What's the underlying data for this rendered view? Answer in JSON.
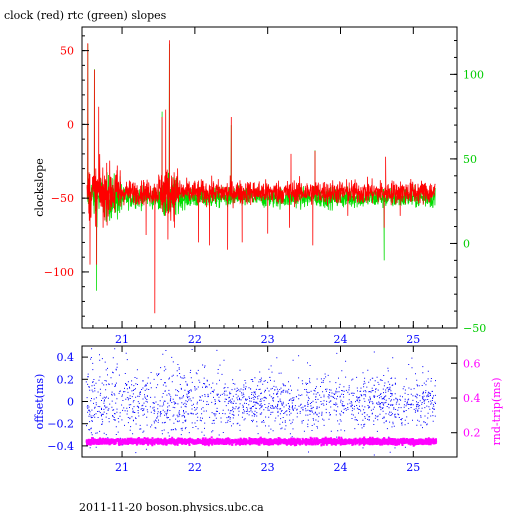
{
  "title": "clock (red) rtc (green) slopes",
  "footer": "2011-11-20 boson.physics.ubc.ca",
  "colors": {
    "clock": "#ff0000",
    "rtc": "#00dd00",
    "offset": "#0000ff",
    "roundtrip": "#ff00ff",
    "frame": "#000000",
    "background": "#ffffff"
  },
  "chart_data": [
    {
      "type": "line",
      "ylabel": "clockslope",
      "y2label": "",
      "xlabel": "",
      "xlim": [
        20.45,
        25.6
      ],
      "ylim": [
        -138,
        66
      ],
      "y2lim": [
        -50,
        128
      ],
      "xticks": [
        21,
        22,
        23,
        24,
        25
      ],
      "yticks": [
        50,
        0,
        -50,
        -100
      ],
      "y2ticks": [
        100,
        50,
        0,
        -50
      ],
      "grid": false,
      "series": [
        {
          "name": "clock",
          "color": "#ff0000",
          "axis": "left",
          "baseline": -46,
          "noise": 4,
          "spikes": [
            {
              "x": 20.53,
              "y": 55
            },
            {
              "x": 20.56,
              "y": -95
            },
            {
              "x": 20.62,
              "y": 37
            },
            {
              "x": 20.65,
              "y": -95
            },
            {
              "x": 20.68,
              "y": 12
            },
            {
              "x": 20.74,
              "y": -70
            },
            {
              "x": 20.9,
              "y": -60
            },
            {
              "x": 21.33,
              "y": -75
            },
            {
              "x": 21.45,
              "y": -128
            },
            {
              "x": 21.55,
              "y": 5
            },
            {
              "x": 21.6,
              "y": 10
            },
            {
              "x": 21.63,
              "y": -78
            },
            {
              "x": 21.65,
              "y": 57
            },
            {
              "x": 21.72,
              "y": -70
            },
            {
              "x": 22.05,
              "y": -80
            },
            {
              "x": 22.2,
              "y": -82
            },
            {
              "x": 22.45,
              "y": -85
            },
            {
              "x": 22.5,
              "y": 5
            },
            {
              "x": 22.65,
              "y": -80
            },
            {
              "x": 23.0,
              "y": -74
            },
            {
              "x": 23.3,
              "y": -70
            },
            {
              "x": 23.32,
              "y": -20
            },
            {
              "x": 23.62,
              "y": -82
            },
            {
              "x": 23.65,
              "y": -18
            },
            {
              "x": 24.1,
              "y": -62
            },
            {
              "x": 24.6,
              "y": -70
            },
            {
              "x": 24.62,
              "y": -22
            },
            {
              "x": 24.82,
              "y": -62
            }
          ]
        },
        {
          "name": "rtc",
          "color": "#00dd00",
          "axis": "right",
          "baseline": 27,
          "noise": 3,
          "spikes": [
            {
              "x": 20.53,
              "y": 118
            },
            {
              "x": 20.62,
              "y": 103
            },
            {
              "x": 20.65,
              "y": -28
            },
            {
              "x": 21.55,
              "y": 78
            },
            {
              "x": 21.65,
              "y": 118
            },
            {
              "x": 22.5,
              "y": 70
            },
            {
              "x": 23.65,
              "y": 55
            },
            {
              "x": 24.6,
              "y": -10
            }
          ]
        }
      ]
    },
    {
      "type": "scatter",
      "ylabel": "offset(ms)",
      "y2label": "rnd-trip(ms)",
      "xlabel": "",
      "xlim": [
        20.45,
        25.6
      ],
      "ylim": [
        -0.5,
        0.5
      ],
      "y2lim": [
        0.06,
        0.7
      ],
      "xticks": [
        21,
        22,
        23,
        24,
        25
      ],
      "yticks": [
        0.4,
        0.2,
        0.0,
        -0.2,
        -0.4
      ],
      "ytick_labels": [
        "0.4",
        "0.2",
        "0",
        "−0.2",
        "−0.4"
      ],
      "y2ticks": [
        0.6,
        0.4,
        0.2
      ],
      "grid": false,
      "series": [
        {
          "name": "offset",
          "color": "#0000ff",
          "axis": "left",
          "center": 0.0,
          "spread": 0.12,
          "x_range": [
            20.5,
            25.3
          ]
        },
        {
          "name": "roundtrip",
          "color": "#ff00ff",
          "axis": "right",
          "center": 0.155,
          "spread": 0.008,
          "x_range": [
            20.5,
            25.3
          ]
        }
      ]
    }
  ]
}
